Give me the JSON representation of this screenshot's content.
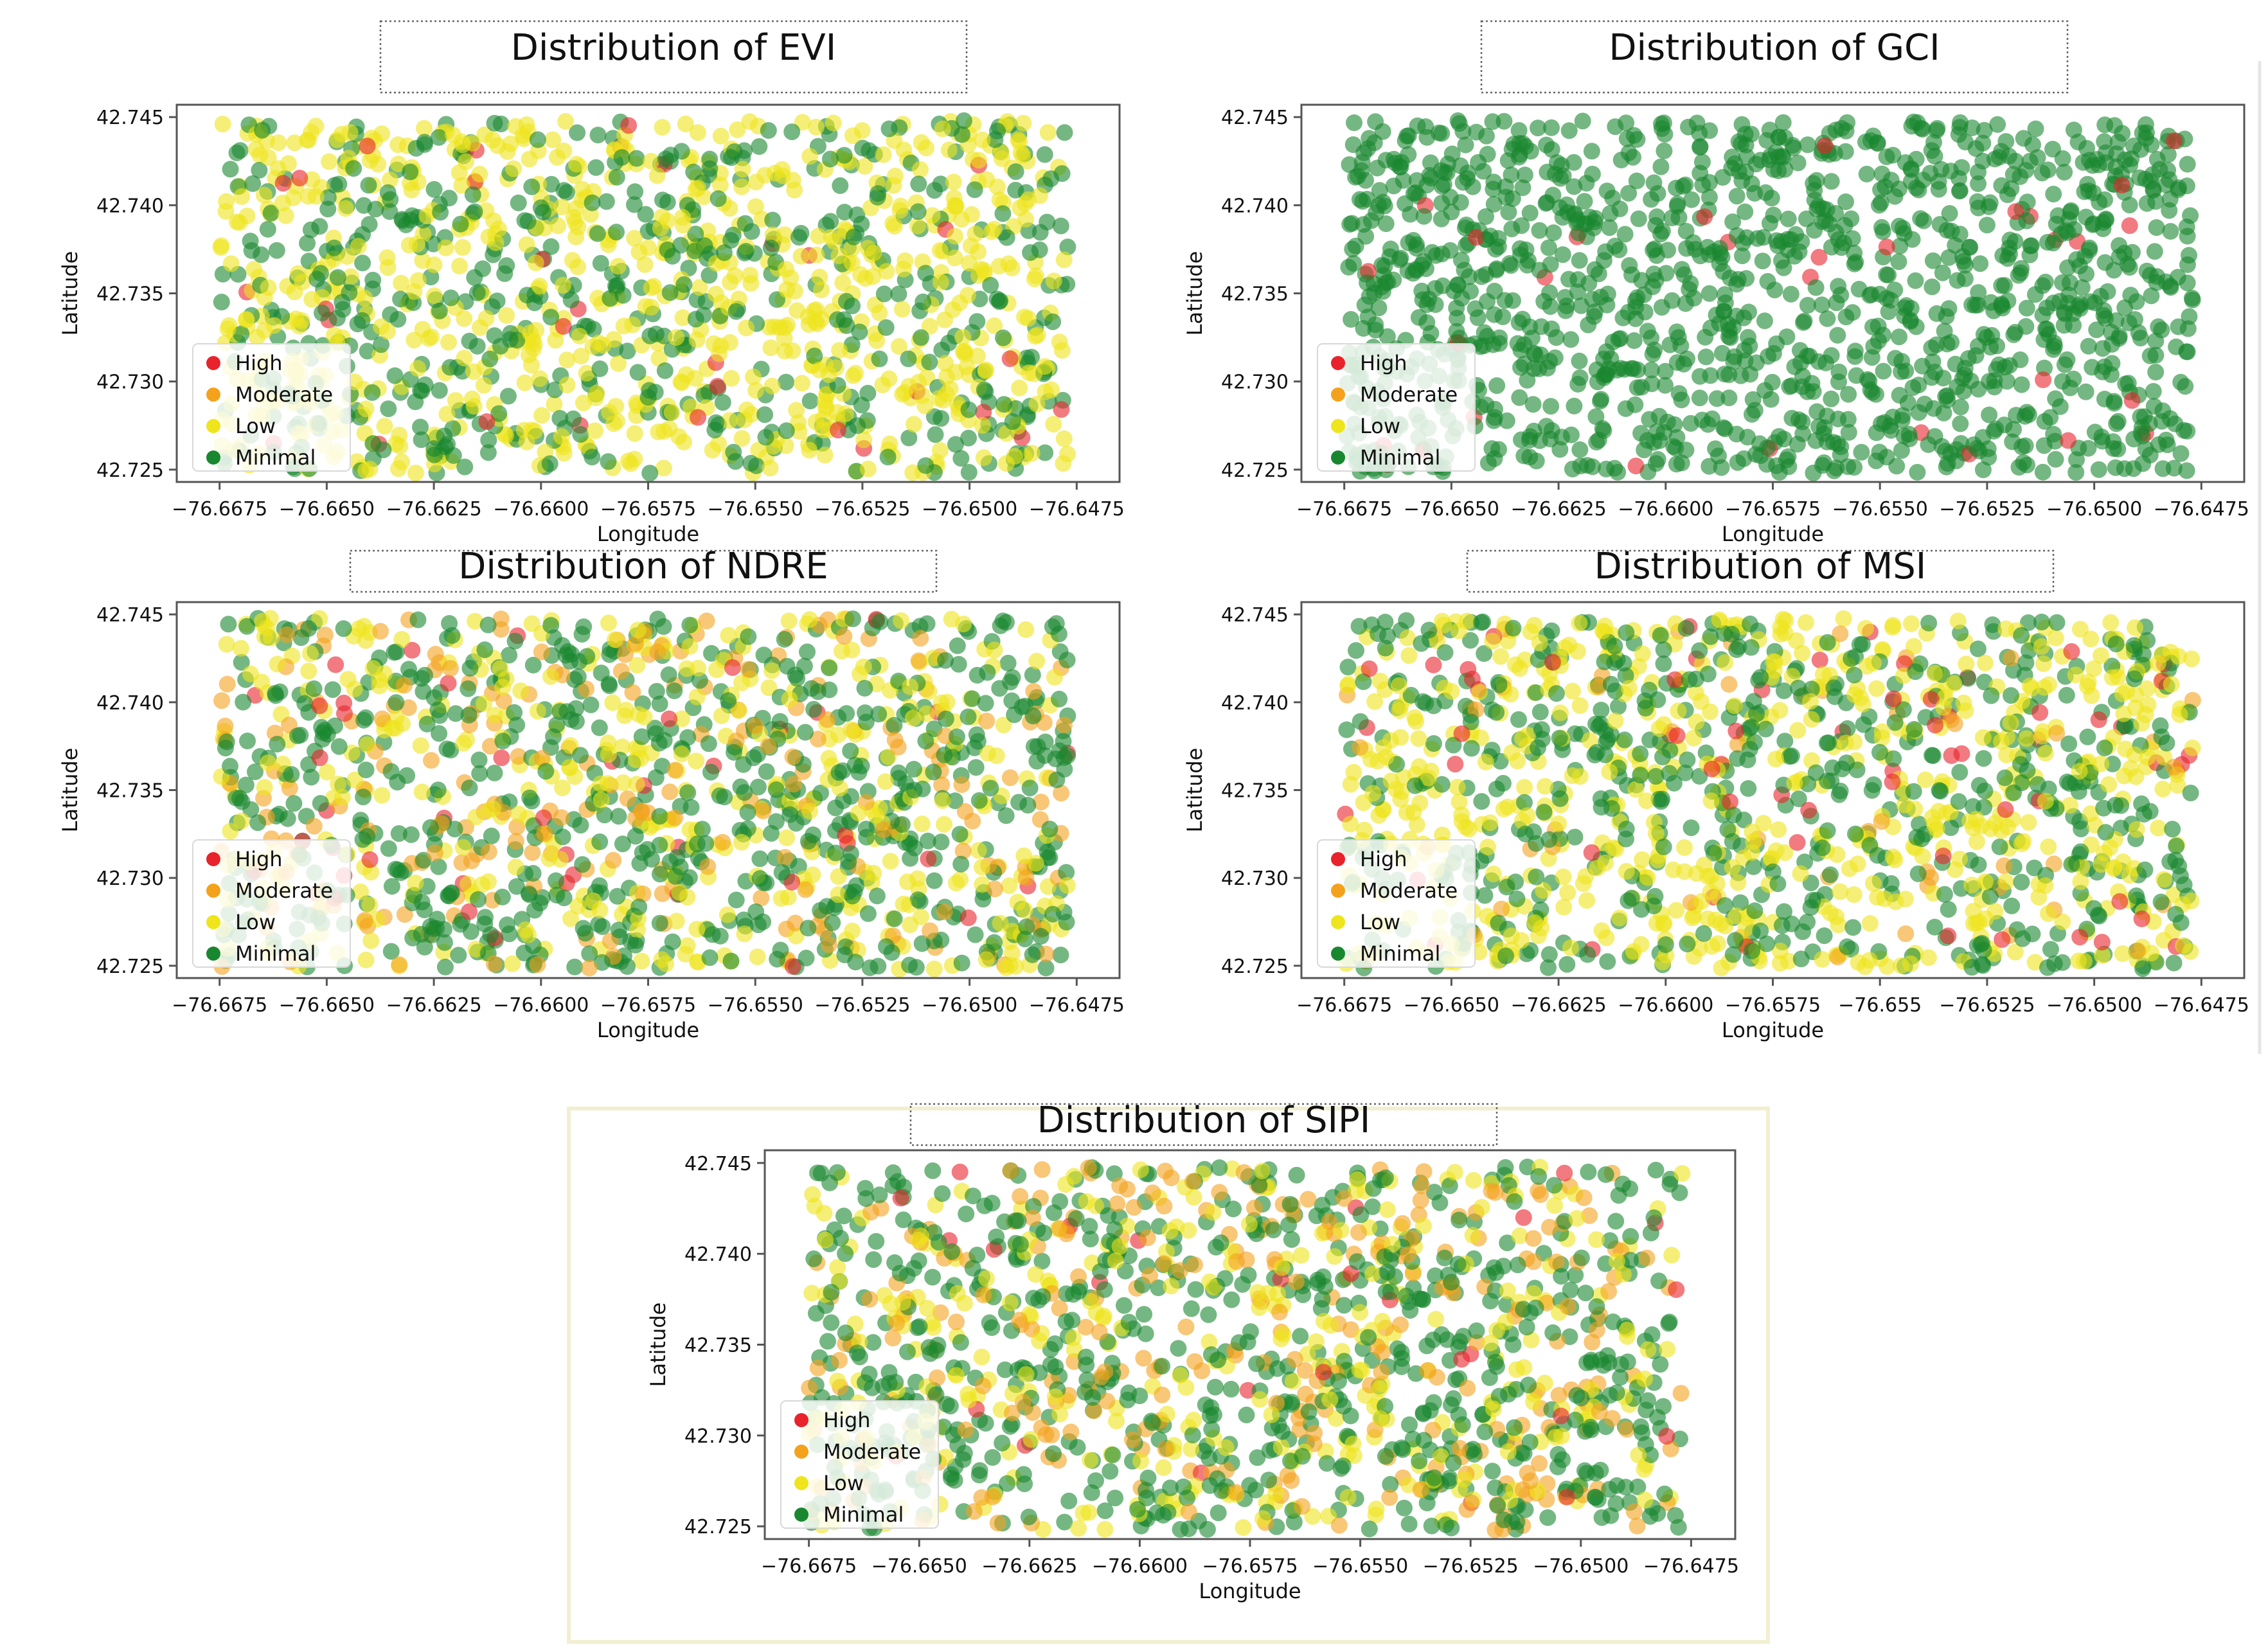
{
  "chart_data": [
    {
      "type": "scatter",
      "title": "Distribution of EVI",
      "xlabel": "Longitude",
      "ylabel": "Latitude",
      "xlim": [
        -76.6685,
        -76.6465
      ],
      "ylim": [
        42.7243,
        42.7457
      ],
      "xticks": [
        -76.6675,
        -76.665,
        -76.6625,
        -76.66,
        -76.6575,
        -76.655,
        -76.6525,
        -76.65,
        -76.6475
      ],
      "xtick_labels": [
        "−76.6675",
        "−76.6650",
        "−76.6625",
        "−76.6600",
        "−76.6575",
        "−76.6550",
        "−76.6525",
        "−76.6500",
        "−76.6475"
      ],
      "yticks": [
        42.725,
        42.73,
        42.735,
        42.74,
        42.745
      ],
      "ytick_labels": [
        "42.725",
        "42.730",
        "42.735",
        "42.740",
        "42.745"
      ],
      "point_extent": {
        "lon": [
          -76.6675,
          -76.6477
        ],
        "lat": [
          42.7248,
          42.7448
        ]
      },
      "legend": {
        "position": "lower-left",
        "entries": [
          "High",
          "Moderate",
          "Low",
          "Minimal"
        ]
      },
      "category_share": {
        "High": 0.02,
        "Moderate": 0.0,
        "Low": 0.58,
        "Minimal": 0.4
      },
      "approx_points": 1400,
      "seed": 11
    },
    {
      "type": "scatter",
      "title": "Distribution of GCI",
      "xlabel": "Longitude",
      "ylabel": "Latitude",
      "xlim": [
        -76.6685,
        -76.6465
      ],
      "ylim": [
        42.7243,
        42.7457
      ],
      "xticks": [
        -76.6675,
        -76.665,
        -76.6625,
        -76.66,
        -76.6575,
        -76.655,
        -76.6525,
        -76.65,
        -76.6475
      ],
      "xtick_labels": [
        "−76.6675",
        "−76.6650",
        "−76.6625",
        "−76.6600",
        "−76.6575",
        "−76.6550",
        "−76.6525",
        "−76.6500",
        "−76.6475"
      ],
      "yticks": [
        42.725,
        42.73,
        42.735,
        42.74,
        42.745
      ],
      "ytick_labels": [
        "42.725",
        "42.730",
        "42.735",
        "42.740",
        "42.745"
      ],
      "point_extent": {
        "lon": [
          -76.6675,
          -76.6477
        ],
        "lat": [
          42.7248,
          42.7448
        ]
      },
      "legend": {
        "position": "lower-left",
        "entries": [
          "High",
          "Moderate",
          "Low",
          "Minimal"
        ]
      },
      "category_share": {
        "High": 0.025,
        "Moderate": 0.0,
        "Low": 0.0,
        "Minimal": 0.975
      },
      "approx_points": 1400,
      "seed": 23
    },
    {
      "type": "scatter",
      "title": "Distribution of NDRE",
      "xlabel": "Longitude",
      "ylabel": "Latitude",
      "xlim": [
        -76.6685,
        -76.6465
      ],
      "ylim": [
        42.7243,
        42.7457
      ],
      "xticks": [
        -76.6675,
        -76.665,
        -76.6625,
        -76.66,
        -76.6575,
        -76.655,
        -76.6525,
        -76.65,
        -76.6475
      ],
      "xtick_labels": [
        "−76.6675",
        "−76.6650",
        "−76.6625",
        "−76.6600",
        "−76.6575",
        "−76.6550",
        "−76.6525",
        "−76.6500",
        "−76.6475"
      ],
      "yticks": [
        42.725,
        42.73,
        42.735,
        42.74,
        42.745
      ],
      "ytick_labels": [
        "42.725",
        "42.730",
        "42.735",
        "42.740",
        "42.745"
      ],
      "point_extent": {
        "lon": [
          -76.6675,
          -76.6477
        ],
        "lat": [
          42.7248,
          42.7448
        ]
      },
      "legend": {
        "position": "lower-left",
        "entries": [
          "High",
          "Moderate",
          "Low",
          "Minimal"
        ]
      },
      "category_share": {
        "High": 0.04,
        "Moderate": 0.16,
        "Low": 0.3,
        "Minimal": 0.5
      },
      "approx_points": 1400,
      "seed": 37
    },
    {
      "type": "scatter",
      "title": "Distribution of MSI",
      "xlabel": "Longitude",
      "ylabel": "Latitude",
      "xlim": [
        -76.6685,
        -76.6465
      ],
      "ylim": [
        42.7243,
        42.7457
      ],
      "xticks": [
        -76.6675,
        -76.665,
        -76.6625,
        -76.66,
        -76.6575,
        -76.655,
        -76.6525,
        -76.65,
        -76.6475
      ],
      "xtick_labels": [
        "−76.6675",
        "−76.6650",
        "−76.6625",
        "−76.6600",
        "−76.6575",
        "−76.655",
        "−76.6525",
        "−76.6500",
        "−76.6475"
      ],
      "yticks": [
        42.725,
        42.73,
        42.735,
        42.74,
        42.745
      ],
      "ytick_labels": [
        "42.725",
        "42.730",
        "42.735",
        "42.740",
        "42.745"
      ],
      "point_extent": {
        "lon": [
          -76.6675,
          -76.6477
        ],
        "lat": [
          42.7248,
          42.7448
        ]
      },
      "legend": {
        "position": "lower-left",
        "entries": [
          "High",
          "Moderate",
          "Low",
          "Minimal"
        ]
      },
      "category_share": {
        "High": 0.04,
        "Moderate": 0.04,
        "Low": 0.47,
        "Minimal": 0.45
      },
      "approx_points": 1400,
      "seed": 53
    },
    {
      "type": "scatter",
      "title": "Distribution of SIPI",
      "xlabel": "Longitude",
      "ylabel": "Latitude",
      "xlim": [
        -76.6685,
        -76.6465
      ],
      "ylim": [
        42.7243,
        42.7457
      ],
      "xticks": [
        -76.6675,
        -76.665,
        -76.6625,
        -76.66,
        -76.6575,
        -76.655,
        -76.6525,
        -76.65,
        -76.6475
      ],
      "xtick_labels": [
        "−76.6675",
        "−76.6650",
        "−76.6625",
        "−76.6600",
        "−76.6575",
        "−76.6550",
        "−76.6525",
        "−76.6500",
        "−76.6475"
      ],
      "yticks": [
        42.725,
        42.73,
        42.735,
        42.74,
        42.745
      ],
      "ytick_labels": [
        "42.725",
        "42.730",
        "42.735",
        "42.740",
        "42.745"
      ],
      "point_extent": {
        "lon": [
          -76.6675,
          -76.6477
        ],
        "lat": [
          42.7248,
          42.7448
        ]
      },
      "legend": {
        "position": "lower-left",
        "entries": [
          "High",
          "Moderate",
          "Low",
          "Minimal"
        ]
      },
      "category_share": {
        "High": 0.02,
        "Moderate": 0.2,
        "Low": 0.25,
        "Minimal": 0.53
      },
      "approx_points": 1400,
      "seed": 71
    }
  ],
  "colors": {
    "High": "#e8232b",
    "Moderate": "#f4a21c",
    "Low": "#eee51c",
    "Minimal": "#19872f",
    "axis": "#555555",
    "text": "#111111"
  }
}
